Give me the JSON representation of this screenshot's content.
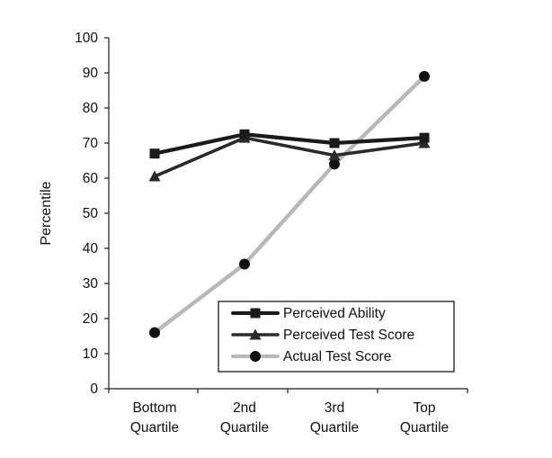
{
  "chart_data": {
    "type": "line",
    "categories": [
      [
        "Bottom",
        "Quartile"
      ],
      [
        "2nd",
        "Quartile"
      ],
      [
        "3rd",
        "Quartile"
      ],
      [
        "Top",
        "Quartile"
      ]
    ],
    "ylabel": "Percentile",
    "xlabel": "",
    "title": "",
    "ylim": [
      0,
      100
    ],
    "yticks": [
      0,
      10,
      20,
      30,
      40,
      50,
      60,
      70,
      80,
      90,
      100
    ],
    "grid": false,
    "legend_position": "bottom-right",
    "series": [
      {
        "name": "Perceived Ability",
        "marker": "square",
        "color": "#1a1a1a",
        "values": [
          67,
          72.5,
          70,
          71.5
        ]
      },
      {
        "name": "Perceived Test Score",
        "marker": "triangle",
        "color": "#2a2a2a",
        "values": [
          60.5,
          71.5,
          66.5,
          70
        ]
      },
      {
        "name": "Actual Test Score",
        "marker": "circle",
        "color": "#111111",
        "line_color": "#b8b8b8",
        "values": [
          16,
          35.5,
          64,
          89
        ]
      }
    ]
  }
}
